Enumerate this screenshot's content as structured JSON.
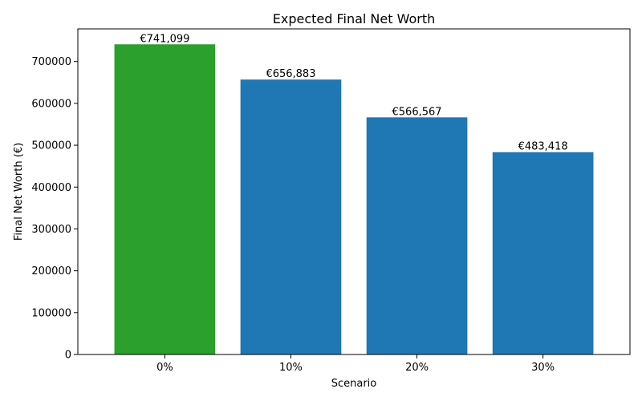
{
  "chart_data": {
    "type": "bar",
    "title": "Expected Final Net Worth",
    "xlabel": "Scenario",
    "ylabel": "Final Net Worth (€)",
    "categories": [
      "0%",
      "10%",
      "20%",
      "30%"
    ],
    "values": [
      741099,
      656883,
      566567,
      483418
    ],
    "data_labels": [
      "€741,099",
      "€656,883",
      "€566,567",
      "€483,418"
    ],
    "bar_colors": [
      "#2ca02c",
      "#1f77b4",
      "#1f77b4",
      "#1f77b4"
    ],
    "ylim": [
      0,
      778000
    ],
    "yticks": [
      0,
      100000,
      200000,
      300000,
      400000,
      500000,
      600000,
      700000
    ],
    "ytick_labels": [
      "0",
      "100000",
      "200000",
      "300000",
      "400000",
      "500000",
      "600000",
      "700000"
    ],
    "grid": false,
    "legend": "none"
  }
}
